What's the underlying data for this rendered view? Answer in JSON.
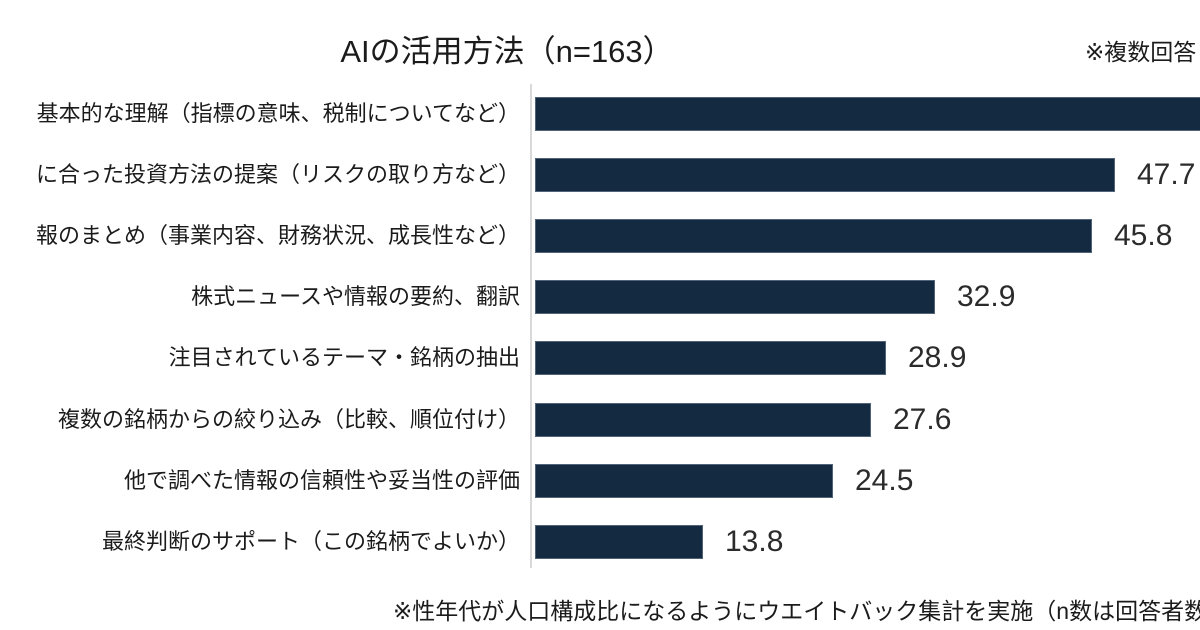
{
  "title": "AIの活用方法（n=163）",
  "annotation_top_right": "※複数回答",
  "footnote": "※性年代が人口構成比になるようにウエイトバック集計を実施（n数は回答者数の実数",
  "colors": {
    "bar": "#142a40",
    "axis_line": "#d9d9d9",
    "text": "#1b1b1b"
  },
  "chart_data": {
    "type": "bar",
    "orientation": "horizontal",
    "title": "AIの活用方法（n=163）",
    "xlim": [
      0,
      56
    ],
    "grid": false,
    "legend": "none",
    "categories": [
      "基本的な理解（指標の意味、税制についてなど）",
      "に合った投資方法の提案（リスクの取り方など）",
      "報のまとめ（事業内容、財務状況、成長性など）",
      "株式ニュースや情報の要約、翻訳",
      "注目されているテーマ・銘柄の抽出",
      "複数の銘柄からの絞り込み（比較、順位付け）",
      "他で調べた情報の信頼性や妥当性の評価",
      "最終判断のサポート（この銘柄でよいか）"
    ],
    "items": [
      {
        "label": "基本的な理解（指標の意味、税制についてなど）",
        "value": 56.0,
        "value_label": "",
        "value_estimated": true,
        "bar_clipped_at_right_edge": true,
        "label_clipped_at_left_edge": true
      },
      {
        "label": "に合った投資方法の提案（リスクの取り方など）",
        "value": 47.7,
        "value_label": "47.7",
        "label_clipped_at_left_edge": true
      },
      {
        "label": "報のまとめ（事業内容、財務状況、成長性など）",
        "value": 45.8,
        "value_label": "45.8",
        "label_clipped_at_left_edge": true
      },
      {
        "label": "株式ニュースや情報の要約、翻訳",
        "value": 32.9,
        "value_label": "32.9",
        "label_clipped_at_left_edge": false
      },
      {
        "label": "注目されているテーマ・銘柄の抽出",
        "value": 28.9,
        "value_label": "28.9",
        "label_clipped_at_left_edge": false
      },
      {
        "label": "複数の銘柄からの絞り込み（比較、順位付け）",
        "value": 27.6,
        "value_label": "27.6",
        "label_clipped_at_left_edge": false
      },
      {
        "label": "他で調べた情報の信頼性や妥当性の評価",
        "value": 24.5,
        "value_label": "24.5",
        "label_clipped_at_left_edge": false
      },
      {
        "label": "最終判断のサポート（この銘柄でよいか）",
        "value": 13.8,
        "value_label": "13.8",
        "label_clipped_at_left_edge": false
      }
    ]
  }
}
